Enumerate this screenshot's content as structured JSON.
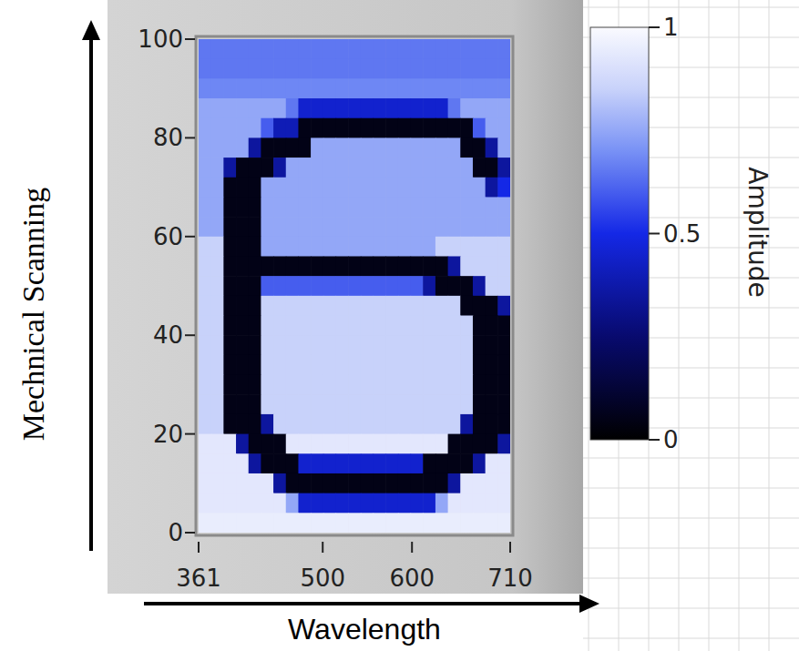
{
  "chart_data": {
    "type": "heatmap",
    "x_label": "Wavelength",
    "y_label": "Mechnical Scanning",
    "xlim": [
      361,
      710
    ],
    "ylim": [
      0,
      100
    ],
    "xticks": [
      361,
      500,
      600,
      710
    ],
    "yticks": [
      0,
      20,
      40,
      60,
      80,
      100
    ],
    "colorbar_label": "Amplitude",
    "color_range": [
      0,
      1
    ],
    "color_ticks": [
      0,
      0.5,
      1
    ],
    "cells": [
      [
        0.65,
        0.65,
        0.65,
        0.65,
        0.65,
        0.65,
        0.65,
        0.65,
        0.65,
        0.65,
        0.65,
        0.65,
        0.65,
        0.65,
        0.65,
        0.65,
        0.65,
        0.65,
        0.65,
        0.65,
        0.65,
        0.65,
        0.65,
        0.65,
        0.65
      ],
      [
        0.65,
        0.65,
        0.65,
        0.65,
        0.65,
        0.65,
        0.65,
        0.65,
        0.65,
        0.65,
        0.65,
        0.65,
        0.65,
        0.65,
        0.65,
        0.65,
        0.65,
        0.65,
        0.65,
        0.65,
        0.65,
        0.65,
        0.65,
        0.65,
        0.65
      ],
      [
        0.68,
        0.68,
        0.68,
        0.68,
        0.68,
        0.68,
        0.68,
        0.68,
        0.68,
        0.68,
        0.68,
        0.68,
        0.68,
        0.68,
        0.68,
        0.68,
        0.68,
        0.68,
        0.68,
        0.68,
        0.68,
        0.68,
        0.68,
        0.68,
        0.68
      ],
      [
        0.75,
        0.75,
        0.75,
        0.75,
        0.75,
        0.75,
        0.75,
        0.65,
        0.45,
        0.45,
        0.45,
        0.45,
        0.45,
        0.45,
        0.45,
        0.45,
        0.45,
        0.45,
        0.45,
        0.45,
        0.65,
        0.75,
        0.75,
        0.75,
        0.75
      ],
      [
        0.75,
        0.75,
        0.75,
        0.75,
        0.75,
        0.6,
        0.4,
        0.4,
        0.05,
        0.05,
        0.05,
        0.05,
        0.05,
        0.05,
        0.05,
        0.05,
        0.05,
        0.05,
        0.05,
        0.05,
        0.05,
        0.05,
        0.6,
        0.75,
        0.75
      ],
      [
        0.75,
        0.75,
        0.75,
        0.75,
        0.35,
        0.05,
        0.05,
        0.05,
        0.05,
        0.75,
        0.75,
        0.75,
        0.75,
        0.75,
        0.75,
        0.75,
        0.75,
        0.75,
        0.75,
        0.75,
        0.75,
        0.05,
        0.05,
        0.35,
        0.75
      ],
      [
        0.75,
        0.75,
        0.35,
        0.05,
        0.05,
        0.05,
        0.35,
        0.75,
        0.75,
        0.75,
        0.75,
        0.75,
        0.75,
        0.75,
        0.75,
        0.75,
        0.75,
        0.75,
        0.75,
        0.75,
        0.75,
        0.75,
        0.05,
        0.05,
        0.35
      ],
      [
        0.75,
        0.75,
        0.05,
        0.05,
        0.05,
        0.75,
        0.75,
        0.75,
        0.75,
        0.75,
        0.75,
        0.75,
        0.75,
        0.75,
        0.75,
        0.75,
        0.75,
        0.75,
        0.75,
        0.75,
        0.75,
        0.75,
        0.75,
        0.35,
        0.5
      ],
      [
        0.75,
        0.75,
        0.05,
        0.05,
        0.05,
        0.75,
        0.75,
        0.75,
        0.75,
        0.75,
        0.75,
        0.75,
        0.75,
        0.75,
        0.75,
        0.75,
        0.75,
        0.75,
        0.75,
        0.75,
        0.75,
        0.75,
        0.75,
        0.75,
        0.75
      ],
      [
        0.75,
        0.75,
        0.05,
        0.05,
        0.05,
        0.75,
        0.75,
        0.75,
        0.75,
        0.75,
        0.75,
        0.75,
        0.75,
        0.75,
        0.75,
        0.75,
        0.75,
        0.75,
        0.75,
        0.75,
        0.75,
        0.75,
        0.75,
        0.75,
        0.75
      ],
      [
        0.85,
        0.85,
        0.05,
        0.05,
        0.05,
        0.75,
        0.75,
        0.75,
        0.75,
        0.75,
        0.75,
        0.75,
        0.75,
        0.75,
        0.75,
        0.75,
        0.75,
        0.75,
        0.75,
        0.85,
        0.85,
        0.85,
        0.85,
        0.85,
        0.85
      ],
      [
        0.85,
        0.85,
        0.05,
        0.05,
        0.05,
        0.05,
        0.05,
        0.05,
        0.05,
        0.05,
        0.05,
        0.05,
        0.05,
        0.05,
        0.05,
        0.05,
        0.05,
        0.05,
        0.05,
        0.05,
        0.35,
        0.85,
        0.85,
        0.85,
        0.85
      ],
      [
        0.85,
        0.85,
        0.05,
        0.05,
        0.05,
        0.6,
        0.6,
        0.6,
        0.6,
        0.6,
        0.6,
        0.6,
        0.6,
        0.6,
        0.6,
        0.6,
        0.6,
        0.6,
        0.35,
        0.05,
        0.05,
        0.05,
        0.35,
        0.85,
        0.85
      ],
      [
        0.85,
        0.85,
        0.05,
        0.05,
        0.05,
        0.85,
        0.85,
        0.85,
        0.85,
        0.85,
        0.85,
        0.85,
        0.85,
        0.85,
        0.85,
        0.85,
        0.85,
        0.85,
        0.85,
        0.85,
        0.85,
        0.05,
        0.05,
        0.05,
        0.35
      ],
      [
        0.85,
        0.85,
        0.05,
        0.05,
        0.05,
        0.85,
        0.85,
        0.85,
        0.85,
        0.85,
        0.85,
        0.85,
        0.85,
        0.85,
        0.85,
        0.85,
        0.85,
        0.85,
        0.85,
        0.85,
        0.85,
        0.85,
        0.05,
        0.05,
        0.05
      ],
      [
        0.85,
        0.85,
        0.05,
        0.05,
        0.05,
        0.85,
        0.85,
        0.85,
        0.85,
        0.85,
        0.85,
        0.85,
        0.85,
        0.85,
        0.85,
        0.85,
        0.85,
        0.85,
        0.85,
        0.85,
        0.85,
        0.85,
        0.05,
        0.05,
        0.05
      ],
      [
        0.85,
        0.85,
        0.05,
        0.05,
        0.05,
        0.85,
        0.85,
        0.85,
        0.85,
        0.85,
        0.85,
        0.85,
        0.85,
        0.85,
        0.85,
        0.85,
        0.85,
        0.85,
        0.85,
        0.85,
        0.85,
        0.85,
        0.05,
        0.05,
        0.05
      ],
      [
        0.85,
        0.85,
        0.05,
        0.05,
        0.05,
        0.85,
        0.85,
        0.85,
        0.85,
        0.85,
        0.85,
        0.85,
        0.85,
        0.85,
        0.85,
        0.85,
        0.85,
        0.85,
        0.85,
        0.85,
        0.85,
        0.85,
        0.05,
        0.05,
        0.05
      ],
      [
        0.85,
        0.85,
        0.05,
        0.05,
        0.05,
        0.85,
        0.85,
        0.85,
        0.85,
        0.85,
        0.85,
        0.85,
        0.85,
        0.85,
        0.85,
        0.85,
        0.85,
        0.85,
        0.85,
        0.85,
        0.85,
        0.85,
        0.05,
        0.05,
        0.05
      ],
      [
        0.85,
        0.85,
        0.05,
        0.05,
        0.05,
        0.35,
        0.85,
        0.85,
        0.85,
        0.85,
        0.85,
        0.85,
        0.85,
        0.85,
        0.85,
        0.85,
        0.85,
        0.85,
        0.85,
        0.85,
        0.85,
        0.35,
        0.05,
        0.05,
        0.05
      ],
      [
        0.93,
        0.93,
        0.93,
        0.35,
        0.05,
        0.05,
        0.05,
        0.93,
        0.93,
        0.93,
        0.93,
        0.93,
        0.93,
        0.93,
        0.93,
        0.93,
        0.93,
        0.93,
        0.93,
        0.93,
        0.05,
        0.05,
        0.05,
        0.05,
        0.35
      ],
      [
        0.93,
        0.93,
        0.93,
        0.93,
        0.35,
        0.05,
        0.05,
        0.05,
        0.45,
        0.45,
        0.45,
        0.45,
        0.45,
        0.45,
        0.45,
        0.45,
        0.45,
        0.45,
        0.05,
        0.05,
        0.05,
        0.05,
        0.35,
        0.93,
        0.93
      ],
      [
        0.93,
        0.93,
        0.93,
        0.93,
        0.93,
        0.93,
        0.35,
        0.05,
        0.05,
        0.05,
        0.05,
        0.05,
        0.05,
        0.05,
        0.05,
        0.05,
        0.05,
        0.05,
        0.05,
        0.05,
        0.35,
        0.93,
        0.93,
        0.93,
        0.93
      ],
      [
        0.93,
        0.93,
        0.93,
        0.93,
        0.93,
        0.93,
        0.93,
        0.75,
        0.45,
        0.45,
        0.45,
        0.45,
        0.45,
        0.45,
        0.45,
        0.45,
        0.45,
        0.45,
        0.45,
        0.75,
        0.93,
        0.93,
        0.93,
        0.93,
        0.93
      ],
      [
        0.95,
        0.95,
        0.95,
        0.95,
        0.95,
        0.95,
        0.95,
        0.95,
        0.95,
        0.95,
        0.95,
        0.95,
        0.95,
        0.95,
        0.95,
        0.95,
        0.95,
        0.95,
        0.95,
        0.95,
        0.95,
        0.95,
        0.95,
        0.95,
        0.95
      ]
    ]
  }
}
